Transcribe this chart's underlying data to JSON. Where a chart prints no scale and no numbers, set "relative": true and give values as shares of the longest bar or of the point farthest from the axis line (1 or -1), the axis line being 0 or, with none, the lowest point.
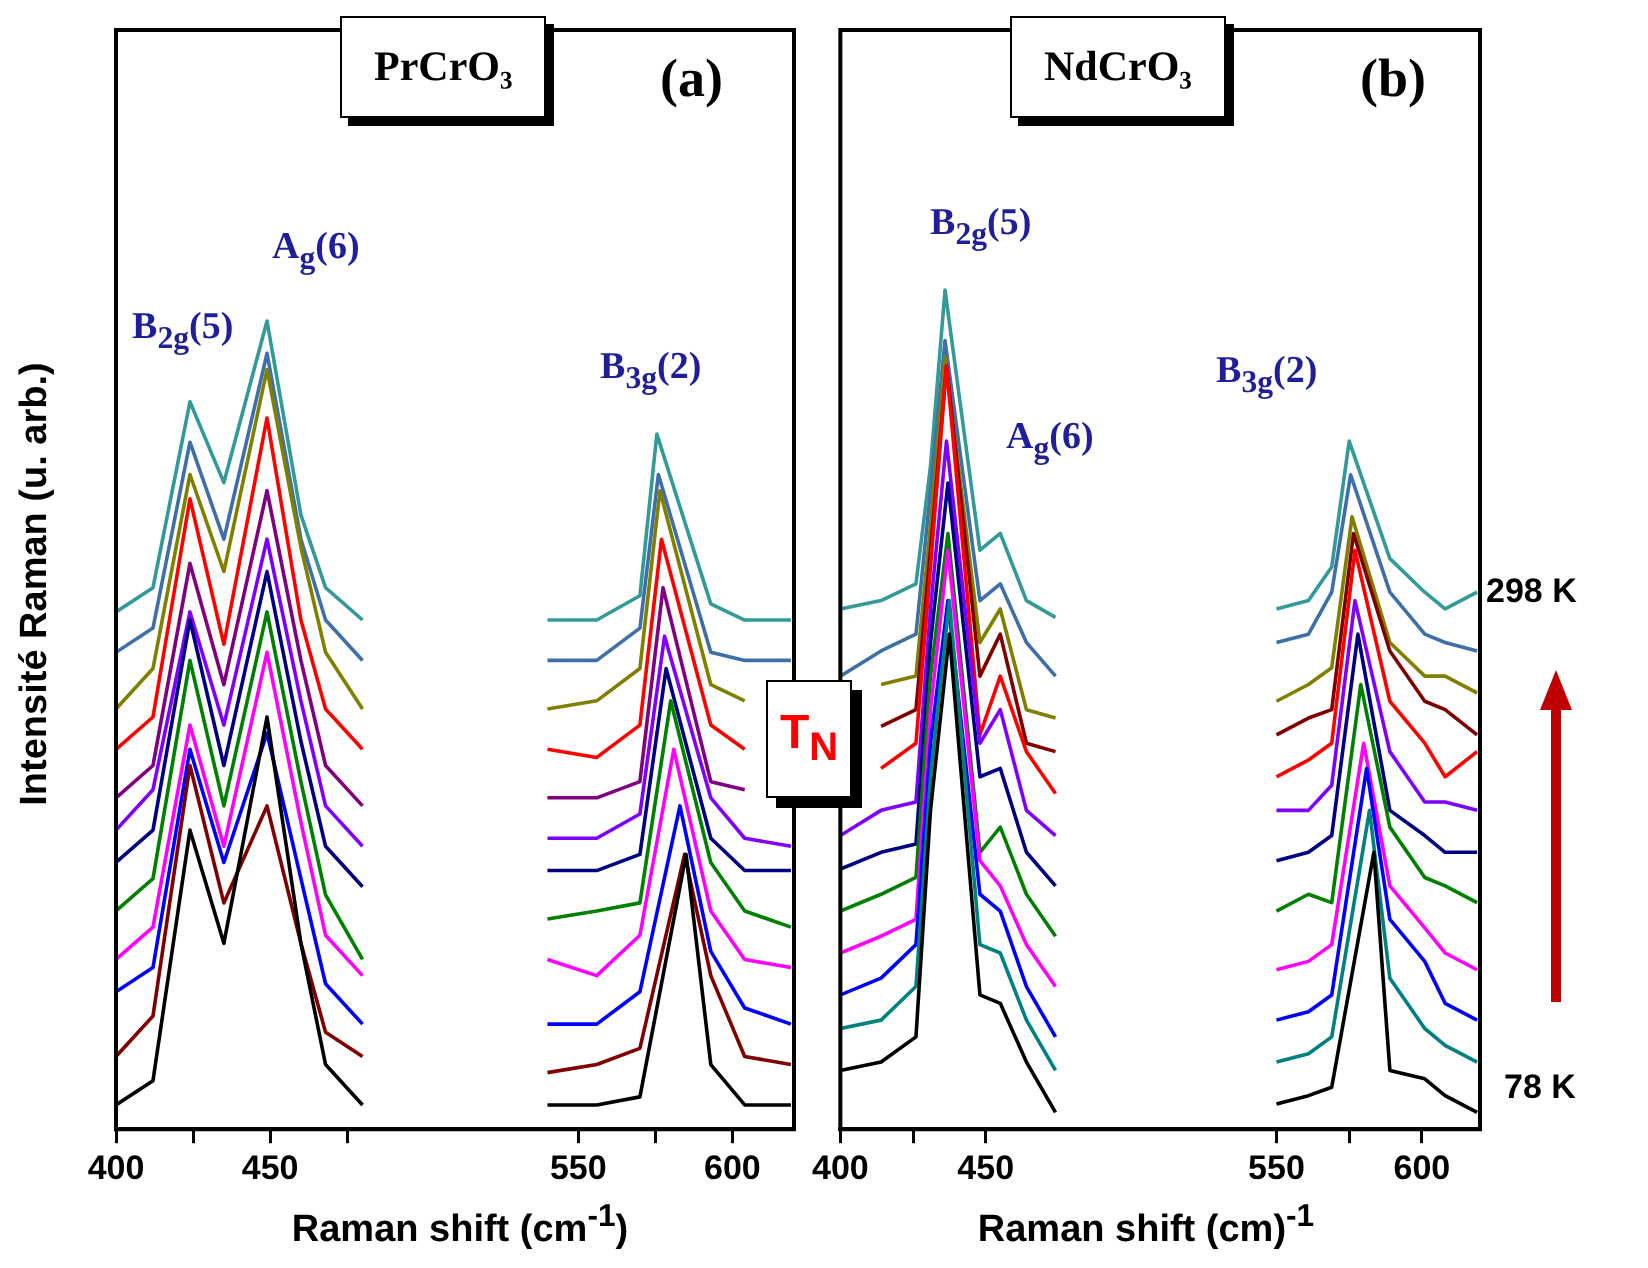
{
  "chart_data": [
    {
      "type": "line",
      "relative": true,
      "xlabel": "Raman shift (cm$^{-1}$)",
      "ylabel": "Intensité Raman (u. arb.)",
      "xlim": [
        400,
        620
      ],
      "xticks": [
        400,
        {
          "value": 425,
          "label": null
        },
        450,
        {
          "value": 475,
          "label": null
        },
        550,
        {
          "value": 575,
          "label": null
        },
        600
      ],
      "annotations": [
        "PrCrO₃",
        "(a)",
        "B$_{2g}$(5)",
        "A$_{g}$(6)",
        "B$_{3g}$(2)"
      ],
      "series": [
        {
          "color": "#000000",
          "x": [
            400,
            412,
            424,
            435,
            449,
            460,
            468,
            480,
            510,
            540,
            556,
            570,
            585,
            593,
            604,
            619
          ],
          "values": [
            0.03,
            0.06,
            0.37,
            0.23,
            0.51,
            0.23,
            0.08,
            0.03,
            null,
            0.03,
            0.03,
            0.04,
            0.34,
            0.08,
            0.03,
            0.03
          ]
        },
        {
          "color": "#800000",
          "x": [
            400,
            412,
            424,
            435,
            449,
            460,
            468,
            480,
            510,
            540,
            556,
            570,
            584.5,
            593,
            604,
            619
          ],
          "values": [
            0.09,
            0.14,
            0.45,
            0.28,
            0.4,
            0.23,
            0.12,
            0.09,
            null,
            0.07,
            0.08,
            0.1,
            0.34,
            0.19,
            0.09,
            0.08
          ]
        },
        {
          "color": "#0000ff",
          "x": [
            400,
            412,
            424,
            435,
            449,
            460,
            468,
            480,
            510,
            540,
            556,
            570,
            583,
            593,
            604,
            619
          ],
          "values": [
            0.17,
            0.2,
            0.47,
            0.33,
            0.49,
            0.31,
            0.18,
            0.13,
            null,
            0.13,
            0.13,
            0.17,
            0.4,
            0.22,
            0.15,
            0.13
          ]
        },
        {
          "color": "#ff00ff",
          "x": [
            400,
            412,
            424,
            435,
            449,
            460,
            468,
            480,
            510,
            540,
            556,
            570,
            581,
            593,
            604,
            619
          ],
          "values": [
            0.21,
            0.25,
            0.5,
            0.35,
            0.59,
            0.38,
            0.24,
            0.19,
            null,
            0.21,
            0.19,
            0.24,
            0.47,
            0.27,
            0.21,
            0.2
          ]
        },
        {
          "color": "#008000",
          "x": [
            400,
            412,
            424,
            435,
            449,
            460,
            468,
            480,
            510,
            540,
            556,
            570,
            580,
            593,
            604,
            619
          ],
          "values": [
            0.27,
            0.31,
            0.58,
            0.4,
            0.64,
            0.43,
            0.29,
            0.21,
            null,
            0.26,
            0.27,
            0.28,
            0.53,
            0.33,
            0.27,
            0.25
          ]
        },
        {
          "color": "#000080",
          "x": [
            400,
            412,
            424,
            435,
            449,
            460,
            468,
            480,
            510,
            540,
            556,
            570,
            578.5,
            593,
            604,
            619
          ],
          "values": [
            0.33,
            0.37,
            0.63,
            0.45,
            0.69,
            0.48,
            0.35,
            0.3,
            null,
            0.32,
            0.32,
            0.34,
            0.57,
            0.36,
            0.32,
            0.32
          ]
        },
        {
          "color": "#8000ff",
          "x": [
            400,
            412,
            424,
            435,
            449,
            460,
            468,
            480,
            510,
            540,
            556,
            570,
            578,
            593,
            604,
            619
          ],
          "values": [
            0.37,
            0.42,
            0.64,
            0.5,
            0.73,
            0.53,
            0.4,
            0.35,
            null,
            0.36,
            0.36,
            0.39,
            0.61,
            0.41,
            0.36,
            0.35
          ]
        },
        {
          "color": "#800080",
          "x": [
            400,
            412,
            424,
            435,
            449,
            460,
            468,
            480,
            510,
            540,
            556,
            570,
            577.5,
            593,
            604
          ],
          "values": [
            0.41,
            0.45,
            0.7,
            0.55,
            0.79,
            0.58,
            0.45,
            0.4,
            null,
            0.41,
            0.41,
            0.43,
            0.67,
            0.43,
            0.42
          ]
        },
        {
          "color": "#ff0000",
          "x": [
            400,
            412,
            424,
            435,
            449,
            460,
            468,
            480,
            510,
            540,
            556,
            570,
            577,
            593,
            604
          ],
          "values": [
            0.47,
            0.51,
            0.78,
            0.6,
            0.88,
            0.63,
            0.52,
            0.47,
            null,
            0.47,
            0.46,
            0.5,
            0.73,
            0.5,
            0.47
          ]
        },
        {
          "color": "#808000",
          "x": [
            400,
            412,
            424,
            435,
            449,
            460,
            468,
            480,
            510,
            540,
            556,
            570,
            576.5,
            593,
            604
          ],
          "values": [
            0.52,
            0.57,
            0.81,
            0.69,
            0.94,
            0.72,
            0.59,
            0.52,
            null,
            0.52,
            0.53,
            0.57,
            0.79,
            0.55,
            0.53
          ]
        },
        {
          "color": "#3f6fa8",
          "x": [
            400,
            412,
            424,
            435,
            449,
            460,
            468,
            480,
            510,
            540,
            556,
            570,
            576,
            593,
            604,
            619
          ],
          "values": [
            0.59,
            0.62,
            0.85,
            0.73,
            0.96,
            0.73,
            0.63,
            0.58,
            null,
            0.58,
            0.58,
            0.62,
            0.81,
            0.59,
            0.58,
            0.58
          ]
        },
        {
          "color": "#339999",
          "x": [
            400,
            412,
            424,
            435,
            449,
            460,
            468,
            480,
            510,
            540,
            556,
            570,
            575.5,
            593,
            604,
            619
          ],
          "values": [
            0.64,
            0.67,
            0.9,
            0.8,
            1.0,
            0.76,
            0.67,
            0.63,
            null,
            0.63,
            0.63,
            0.66,
            0.86,
            0.65,
            0.63,
            0.63
          ]
        }
      ]
    },
    {
      "type": "line",
      "relative": true,
      "xlabel": "Raman shift (cm)$^{-1}$",
      "xlim": [
        400,
        620
      ],
      "xticks": [
        400,
        {
          "value": 425,
          "label": null
        },
        450,
        550,
        {
          "value": 575,
          "label": null
        },
        600
      ],
      "annotations": [
        "NdCrO₃",
        "(b)",
        "T$_{N}$",
        "298 K",
        "78 K",
        "B$_{2g}$(5)",
        "A$_{g}$(6)",
        "B$_{3g}$(2)"
      ],
      "series": [
        {
          "color": "#000000",
          "x": [
            400,
            414,
            426,
            431,
            437.5,
            448,
            455,
            464,
            474,
            510,
            550,
            561,
            569,
            583.5,
            589,
            601,
            608,
            619
          ],
          "values": [
            0.07,
            0.08,
            0.11,
            0.38,
            0.59,
            0.16,
            0.15,
            0.08,
            0.02,
            null,
            0.03,
            0.04,
            0.05,
            0.33,
            0.07,
            0.06,
            0.04,
            0.02
          ]
        },
        {
          "color": "#008080",
          "x": [
            400,
            414,
            426,
            431,
            437.5,
            448,
            455,
            464,
            474,
            510,
            550,
            561,
            569,
            582,
            589,
            601,
            608,
            619
          ],
          "values": [
            0.12,
            0.13,
            0.17,
            0.42,
            0.63,
            0.22,
            0.21,
            0.13,
            0.07,
            null,
            0.08,
            0.09,
            0.11,
            0.38,
            0.18,
            0.12,
            0.1,
            0.08
          ]
        },
        {
          "color": "#0000ff",
          "x": [
            400,
            414,
            426,
            431,
            437,
            448,
            455,
            464,
            474,
            510,
            550,
            561,
            569,
            581,
            589,
            601,
            608,
            619
          ],
          "values": [
            0.16,
            0.18,
            0.22,
            0.46,
            0.63,
            0.28,
            0.26,
            0.17,
            0.11,
            null,
            0.13,
            0.14,
            0.16,
            0.43,
            0.25,
            0.2,
            0.15,
            0.13
          ]
        },
        {
          "color": "#ff00ff",
          "x": [
            400,
            414,
            426,
            431,
            437,
            448,
            455,
            464,
            474,
            510,
            550,
            561,
            569,
            580,
            589,
            601,
            608,
            619
          ],
          "values": [
            0.21,
            0.23,
            0.25,
            0.5,
            0.69,
            0.32,
            0.29,
            0.22,
            0.17,
            null,
            0.19,
            0.2,
            0.22,
            0.46,
            0.29,
            0.24,
            0.21,
            0.19
          ]
        },
        {
          "color": "#008000",
          "x": [
            400,
            414,
            426,
            431,
            437,
            448,
            455,
            464,
            474,
            510,
            550,
            561,
            569,
            579,
            589,
            601,
            608,
            619
          ],
          "values": [
            0.26,
            0.28,
            0.3,
            0.54,
            0.71,
            0.33,
            0.36,
            0.28,
            0.23,
            null,
            0.26,
            0.28,
            0.27,
            0.53,
            0.36,
            0.3,
            0.29,
            0.27
          ]
        },
        {
          "color": "#000080",
          "x": [
            400,
            414,
            426,
            431,
            437,
            448,
            455,
            464,
            474,
            510,
            550,
            561,
            569,
            578,
            589,
            601,
            608,
            619
          ],
          "values": [
            0.31,
            0.33,
            0.34,
            0.58,
            0.77,
            0.42,
            0.43,
            0.33,
            0.29,
            null,
            0.32,
            0.33,
            0.35,
            0.59,
            0.38,
            0.35,
            0.33,
            0.33
          ]
        },
        {
          "color": "#8000ff",
          "x": [
            400,
            414,
            426,
            431,
            436.5,
            448,
            455,
            464,
            474,
            510,
            550,
            561,
            569,
            577,
            589,
            601,
            608,
            619
          ],
          "values": [
            0.35,
            0.38,
            0.39,
            0.62,
            0.82,
            0.46,
            0.5,
            0.38,
            0.35,
            null,
            0.38,
            0.38,
            0.41,
            0.63,
            0.45,
            0.39,
            0.39,
            0.38
          ]
        },
        {
          "color": "#ff0000",
          "x": [
            414,
            426,
            431,
            436.5,
            448,
            455,
            464,
            474,
            510,
            550,
            561,
            569,
            577,
            589,
            601,
            608,
            619
          ],
          "values": [
            0.43,
            0.46,
            0.67,
            0.91,
            0.47,
            0.54,
            0.45,
            0.4,
            null,
            0.42,
            0.44,
            0.46,
            0.69,
            0.51,
            0.46,
            0.42,
            0.45
          ]
        },
        {
          "color": "#800000",
          "x": [
            414,
            426,
            431,
            436.5,
            448,
            455,
            464,
            474,
            510,
            550,
            561,
            569,
            576.5,
            589,
            601,
            608,
            619
          ],
          "values": [
            0.48,
            0.5,
            0.69,
            0.91,
            0.54,
            0.59,
            0.46,
            0.45,
            null,
            0.47,
            0.49,
            0.5,
            0.71,
            0.57,
            0.51,
            0.5,
            0.47
          ]
        },
        {
          "color": "#808000",
          "x": [
            414,
            426,
            431,
            436,
            448,
            455,
            464,
            474,
            510,
            550,
            561,
            569,
            576,
            589,
            601,
            608,
            619
          ],
          "values": [
            0.53,
            0.54,
            0.72,
            0.92,
            0.58,
            0.62,
            0.5,
            0.49,
            null,
            0.51,
            0.53,
            0.55,
            0.73,
            0.58,
            0.54,
            0.54,
            0.52
          ]
        },
        {
          "color": "#3f6fa8",
          "x": [
            400,
            414,
            426,
            431,
            436,
            448,
            455,
            464,
            474,
            510,
            550,
            561,
            569,
            575.5,
            589,
            601,
            608,
            619
          ],
          "values": [
            0.54,
            0.57,
            0.59,
            0.76,
            0.94,
            0.63,
            0.65,
            0.58,
            0.54,
            null,
            0.58,
            0.59,
            0.64,
            0.78,
            0.64,
            0.59,
            0.58,
            0.57
          ]
        },
        {
          "color": "#339999",
          "x": [
            400,
            414,
            426,
            431,
            436,
            448,
            455,
            464,
            474,
            510,
            550,
            561,
            569,
            575,
            589,
            601,
            608,
            619
          ],
          "values": [
            0.62,
            0.63,
            0.65,
            0.79,
            1.0,
            0.69,
            0.71,
            0.63,
            0.61,
            null,
            0.62,
            0.63,
            0.67,
            0.82,
            0.68,
            0.64,
            0.62,
            0.64
          ]
        }
      ]
    }
  ]
}
